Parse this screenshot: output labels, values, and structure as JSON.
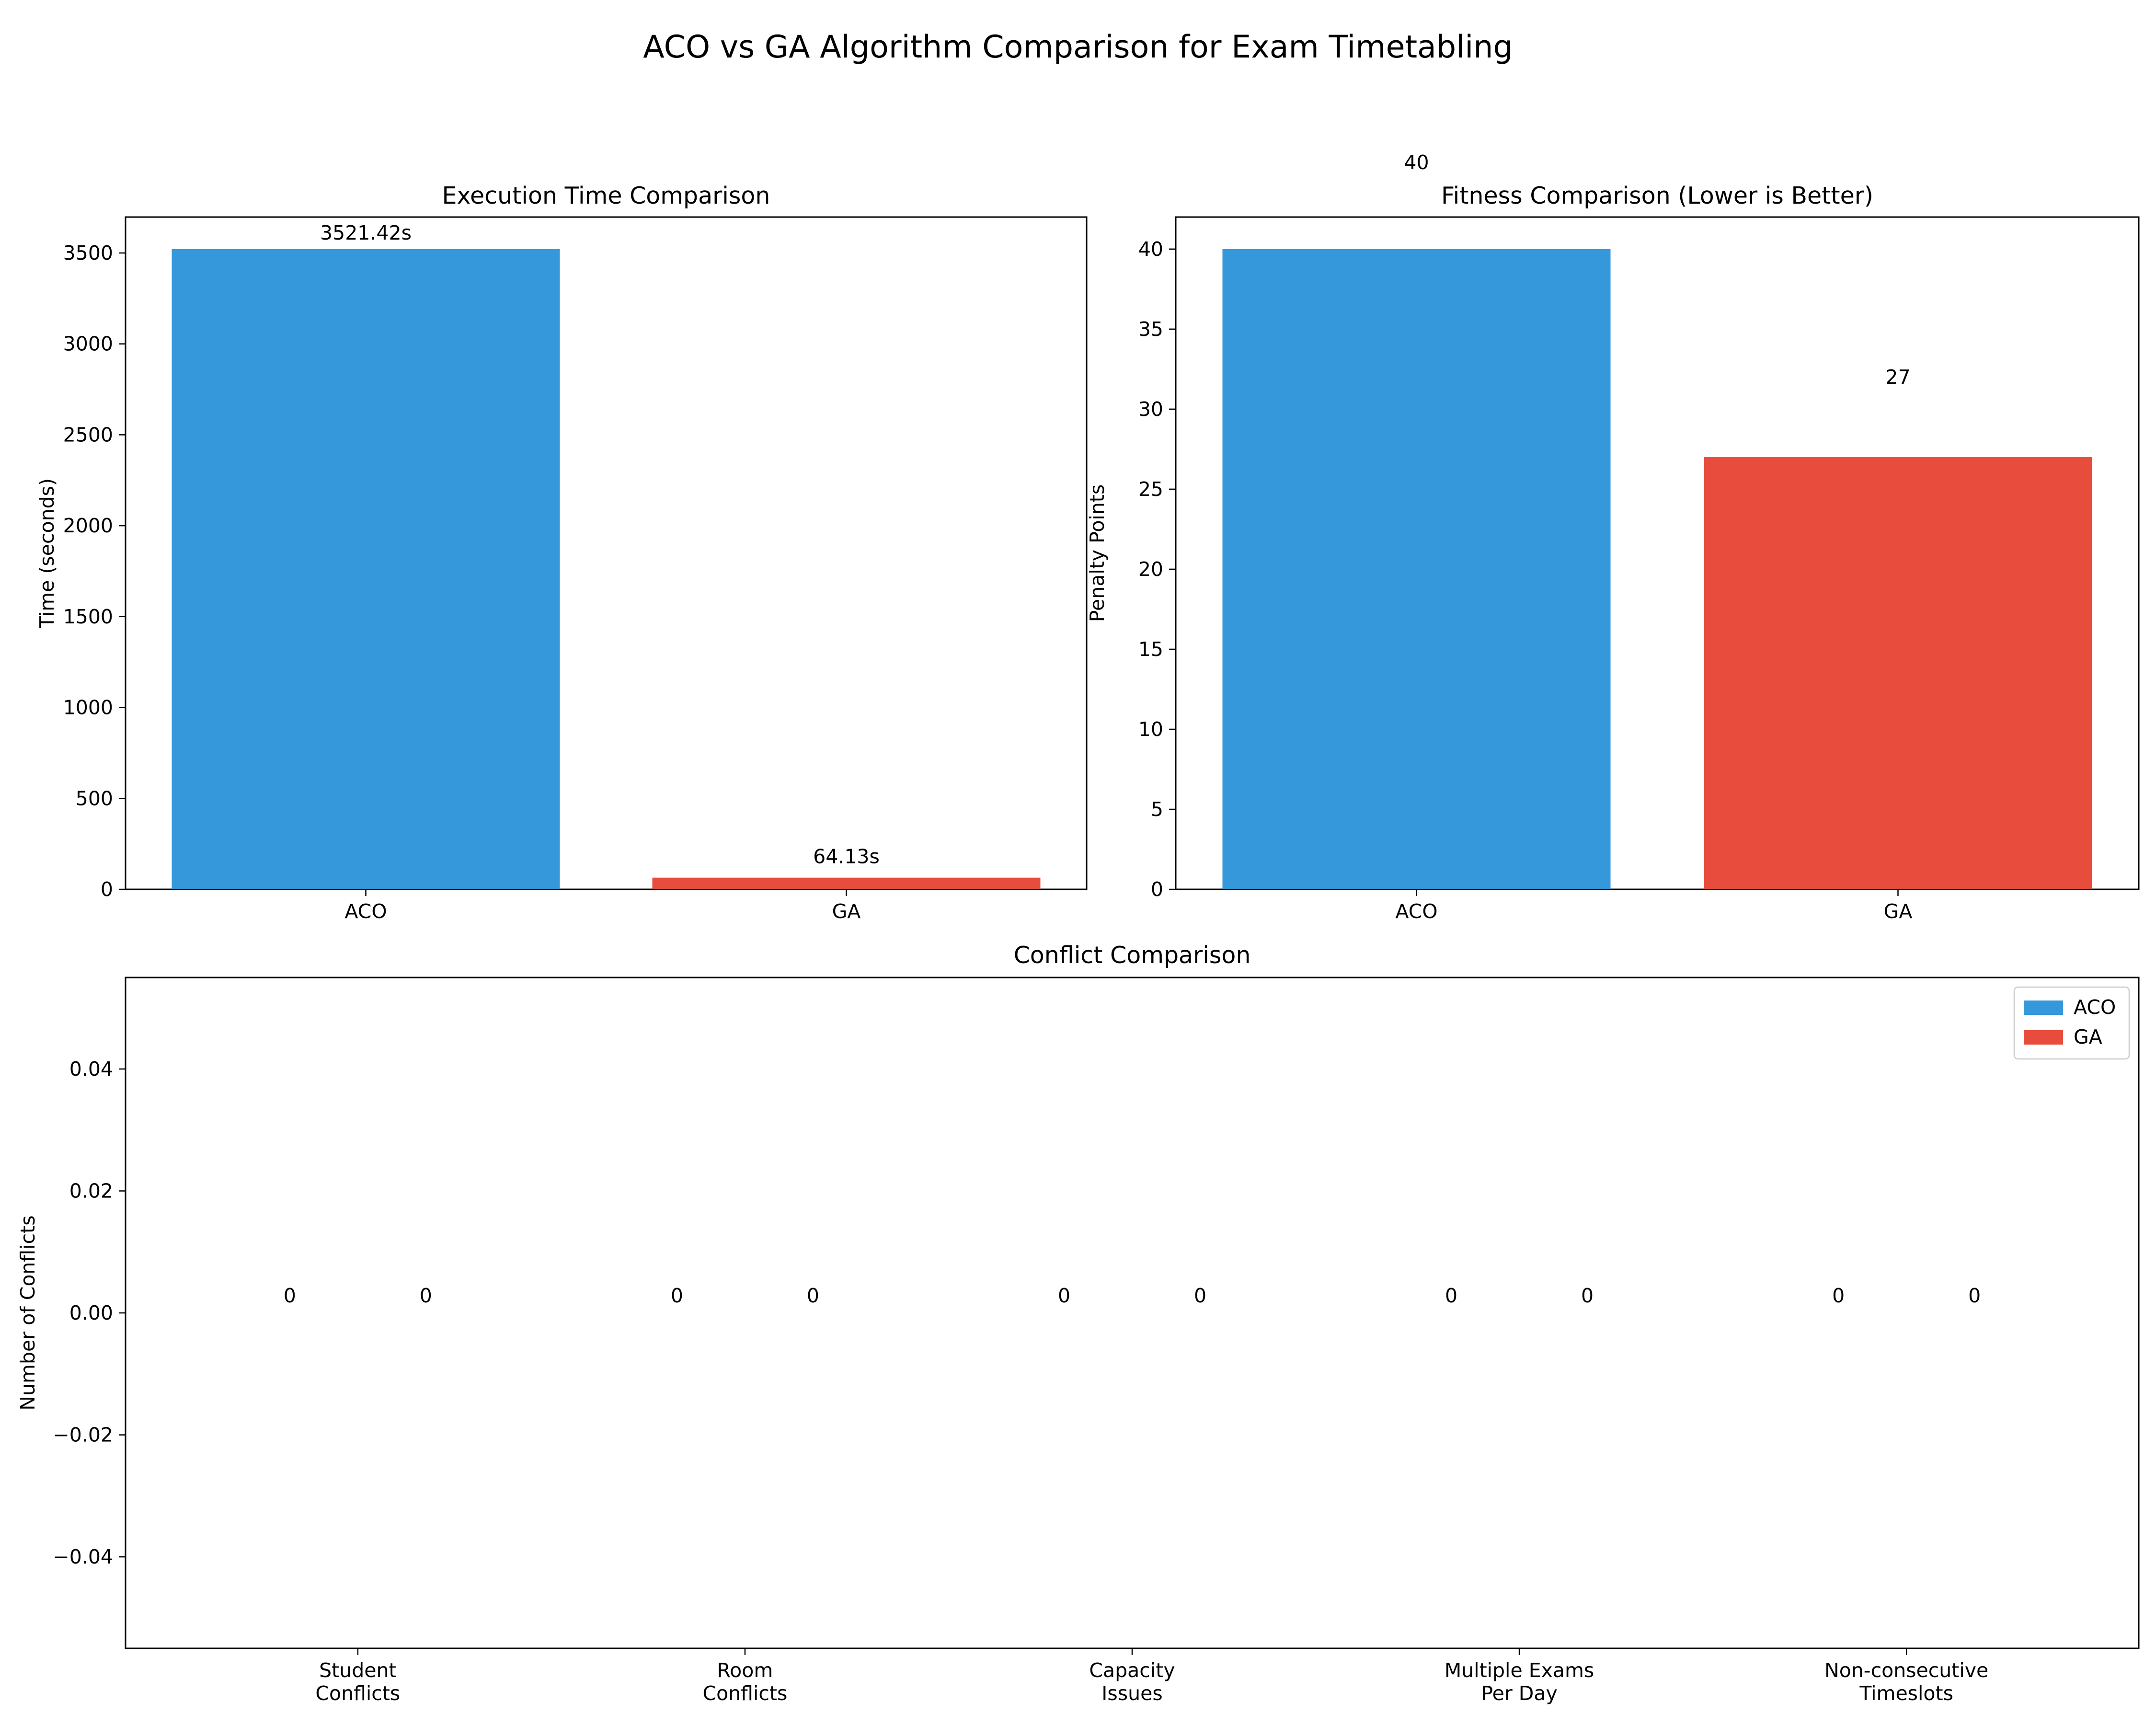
{
  "figure_title": "ACO vs GA Algorithm Comparison for Exam Timetabling",
  "colors": {
    "ACO": "#3598db",
    "GA": "#e74c3c"
  },
  "chart_data": [
    {
      "type": "bar",
      "title": "Execution Time Comparison",
      "xlabel": "",
      "ylabel": "Time (seconds)",
      "categories": [
        "ACO",
        "GA"
      ],
      "values": [
        3521.42,
        64.13
      ],
      "value_labels": [
        "3521.42s",
        "64.13s"
      ],
      "ylim": [
        0,
        3697.5
      ],
      "yticks": [
        0,
        500,
        1000,
        1500,
        2000,
        2500,
        3000,
        3500
      ],
      "ytick_labels": [
        "0",
        "500",
        "1000",
        "1500",
        "2000",
        "2500",
        "3000",
        "3500"
      ],
      "grid": false
    },
    {
      "type": "bar",
      "title": "Fitness Comparison (Lower is Better)",
      "xlabel": "",
      "ylabel": "Penalty Points",
      "categories": [
        "ACO",
        "GA"
      ],
      "values": [
        40,
        27
      ],
      "value_labels": [
        "40",
        "27"
      ],
      "ylim": [
        0,
        42
      ],
      "yticks": [
        0,
        5,
        10,
        15,
        20,
        25,
        30,
        35,
        40
      ],
      "ytick_labels": [
        "0",
        "5",
        "10",
        "15",
        "20",
        "25",
        "30",
        "35",
        "40"
      ],
      "grid": false
    },
    {
      "type": "bar",
      "title": "Conflict Comparison",
      "xlabel": "",
      "ylabel": "Number of Conflicts",
      "categories": [
        "Student\nConflicts",
        "Room\nConflicts",
        "Capacity\nIssues",
        "Multiple Exams\nPer Day",
        "Non-consecutive\nTimeslots"
      ],
      "series": [
        {
          "name": "ACO",
          "values": [
            0,
            0,
            0,
            0,
            0
          ],
          "value_labels": [
            "0",
            "0",
            "0",
            "0",
            "0"
          ]
        },
        {
          "name": "GA",
          "values": [
            0,
            0,
            0,
            0,
            0
          ],
          "value_labels": [
            "0",
            "0",
            "0",
            "0",
            "0"
          ]
        }
      ],
      "ylim": [
        -0.055,
        0.055
      ],
      "yticks": [
        -0.04,
        -0.02,
        0.0,
        0.02,
        0.04
      ],
      "ytick_labels": [
        "−0.04",
        "−0.02",
        "0.00",
        "0.02",
        "0.04"
      ],
      "legend": "top-right",
      "grid": false
    }
  ]
}
